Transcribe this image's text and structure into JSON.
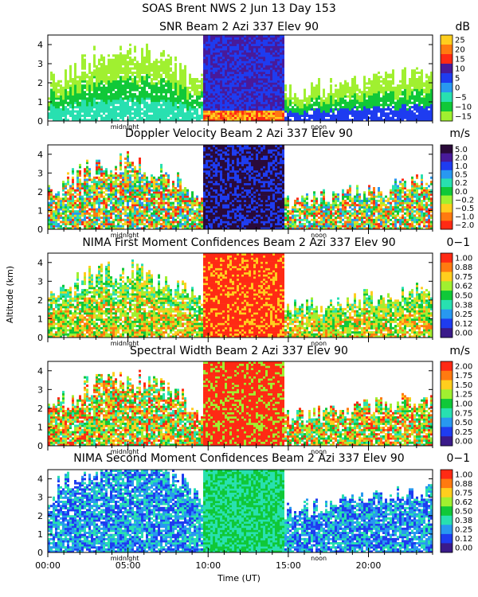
{
  "header": {
    "line1": "SOAS Brent NWS   2 Jun 13 Day 153"
  },
  "x_axis": {
    "label": "Time (UT)",
    "ticks": [
      "00:00",
      "05:00",
      "10:00",
      "15:00",
      "20:00"
    ],
    "tick_hours": [
      0,
      5,
      10,
      15,
      20
    ],
    "range_hours": [
      0,
      24
    ],
    "midnight_label": "midnight",
    "noon_label": "noon",
    "midnight_hour": 4.8,
    "noon_hour": 16.9
  },
  "y_axis": {
    "label": "Altitude (km)",
    "ticks": [
      "0",
      "1",
      "2",
      "3",
      "4"
    ],
    "range_km": [
      0,
      4.5
    ]
  },
  "colors": {
    "snr": [
      "#a0f030",
      "#10c838",
      "#28e0b0",
      "#2898f0",
      "#1e3cf0",
      "#481a9a",
      "#ff2a14",
      "#ff7a10",
      "#ffce1e"
    ],
    "velocity": [
      "#ff2a14",
      "#ff7a10",
      "#ffce1e",
      "#a0f030",
      "#10c838",
      "#28e0b0",
      "#2898f0",
      "#1e3cf0",
      "#481a9a",
      "#2a0a3a"
    ],
    "confidence": [
      "#3a1a8a",
      "#1e3cf0",
      "#2898f0",
      "#28e0b0",
      "#10c838",
      "#a0f030",
      "#ffce1e",
      "#ff7a10",
      "#ff2a14"
    ]
  },
  "chart_data": [
    {
      "type": "heatmap",
      "title": "SNR Beam 2 Azi 337 Elev 90",
      "unit": "dB",
      "colorbar_ticks": [
        "25",
        "20",
        "15",
        "10",
        "5",
        "0",
        "−5",
        "−10",
        "−15"
      ],
      "xlabel": "",
      "ylabel": "Altitude (km)",
      "xlim_hours": [
        0,
        24
      ],
      "ylim_km": [
        0,
        4.5
      ]
    },
    {
      "type": "heatmap",
      "title": "Doppler Velocity Beam 2 Azi 337 Elev 90",
      "unit": "m/s",
      "colorbar_ticks": [
        "5.0",
        "2.0",
        "1.0",
        "0.5",
        "0.2",
        "0.0",
        "−0.2",
        "−0.5",
        "−1.0",
        "−2.0"
      ],
      "xlabel": "",
      "ylabel": "Altitude (km)",
      "xlim_hours": [
        0,
        24
      ],
      "ylim_km": [
        0,
        4.5
      ]
    },
    {
      "type": "heatmap",
      "title": "NIMA First Moment Confidences Beam 2 Azi 337 Elev 90",
      "unit": "0−1",
      "colorbar_ticks": [
        "1.00",
        "0.88",
        "0.75",
        "0.62",
        "0.50",
        "0.38",
        "0.25",
        "0.12",
        "0.00"
      ],
      "xlabel": "",
      "ylabel": "Altitude (km)",
      "xlim_hours": [
        0,
        24
      ],
      "ylim_km": [
        0,
        4.5
      ]
    },
    {
      "type": "heatmap",
      "title": "Spectral Width Beam 2 Azi 337 Elev 90",
      "unit": "m/s",
      "colorbar_ticks": [
        "2.00",
        "1.75",
        "1.50",
        "1.25",
        "1.00",
        "0.75",
        "0.50",
        "0.25",
        "0.00"
      ],
      "xlabel": "",
      "ylabel": "Altitude (km)",
      "xlim_hours": [
        0,
        24
      ],
      "ylim_km": [
        0,
        4.5
      ]
    },
    {
      "type": "heatmap",
      "title": "NIMA Second Moment Confidences Beam 2 Azi 337 Elev 90",
      "unit": "0−1",
      "colorbar_ticks": [
        "1.00",
        "0.88",
        "0.75",
        "0.62",
        "0.50",
        "0.38",
        "0.25",
        "0.12",
        "0.00"
      ],
      "xlabel": "Time (UT)",
      "ylabel": "Altitude (km)",
      "xlim_hours": [
        0,
        24
      ],
      "ylim_km": [
        0,
        4.5
      ]
    }
  ]
}
